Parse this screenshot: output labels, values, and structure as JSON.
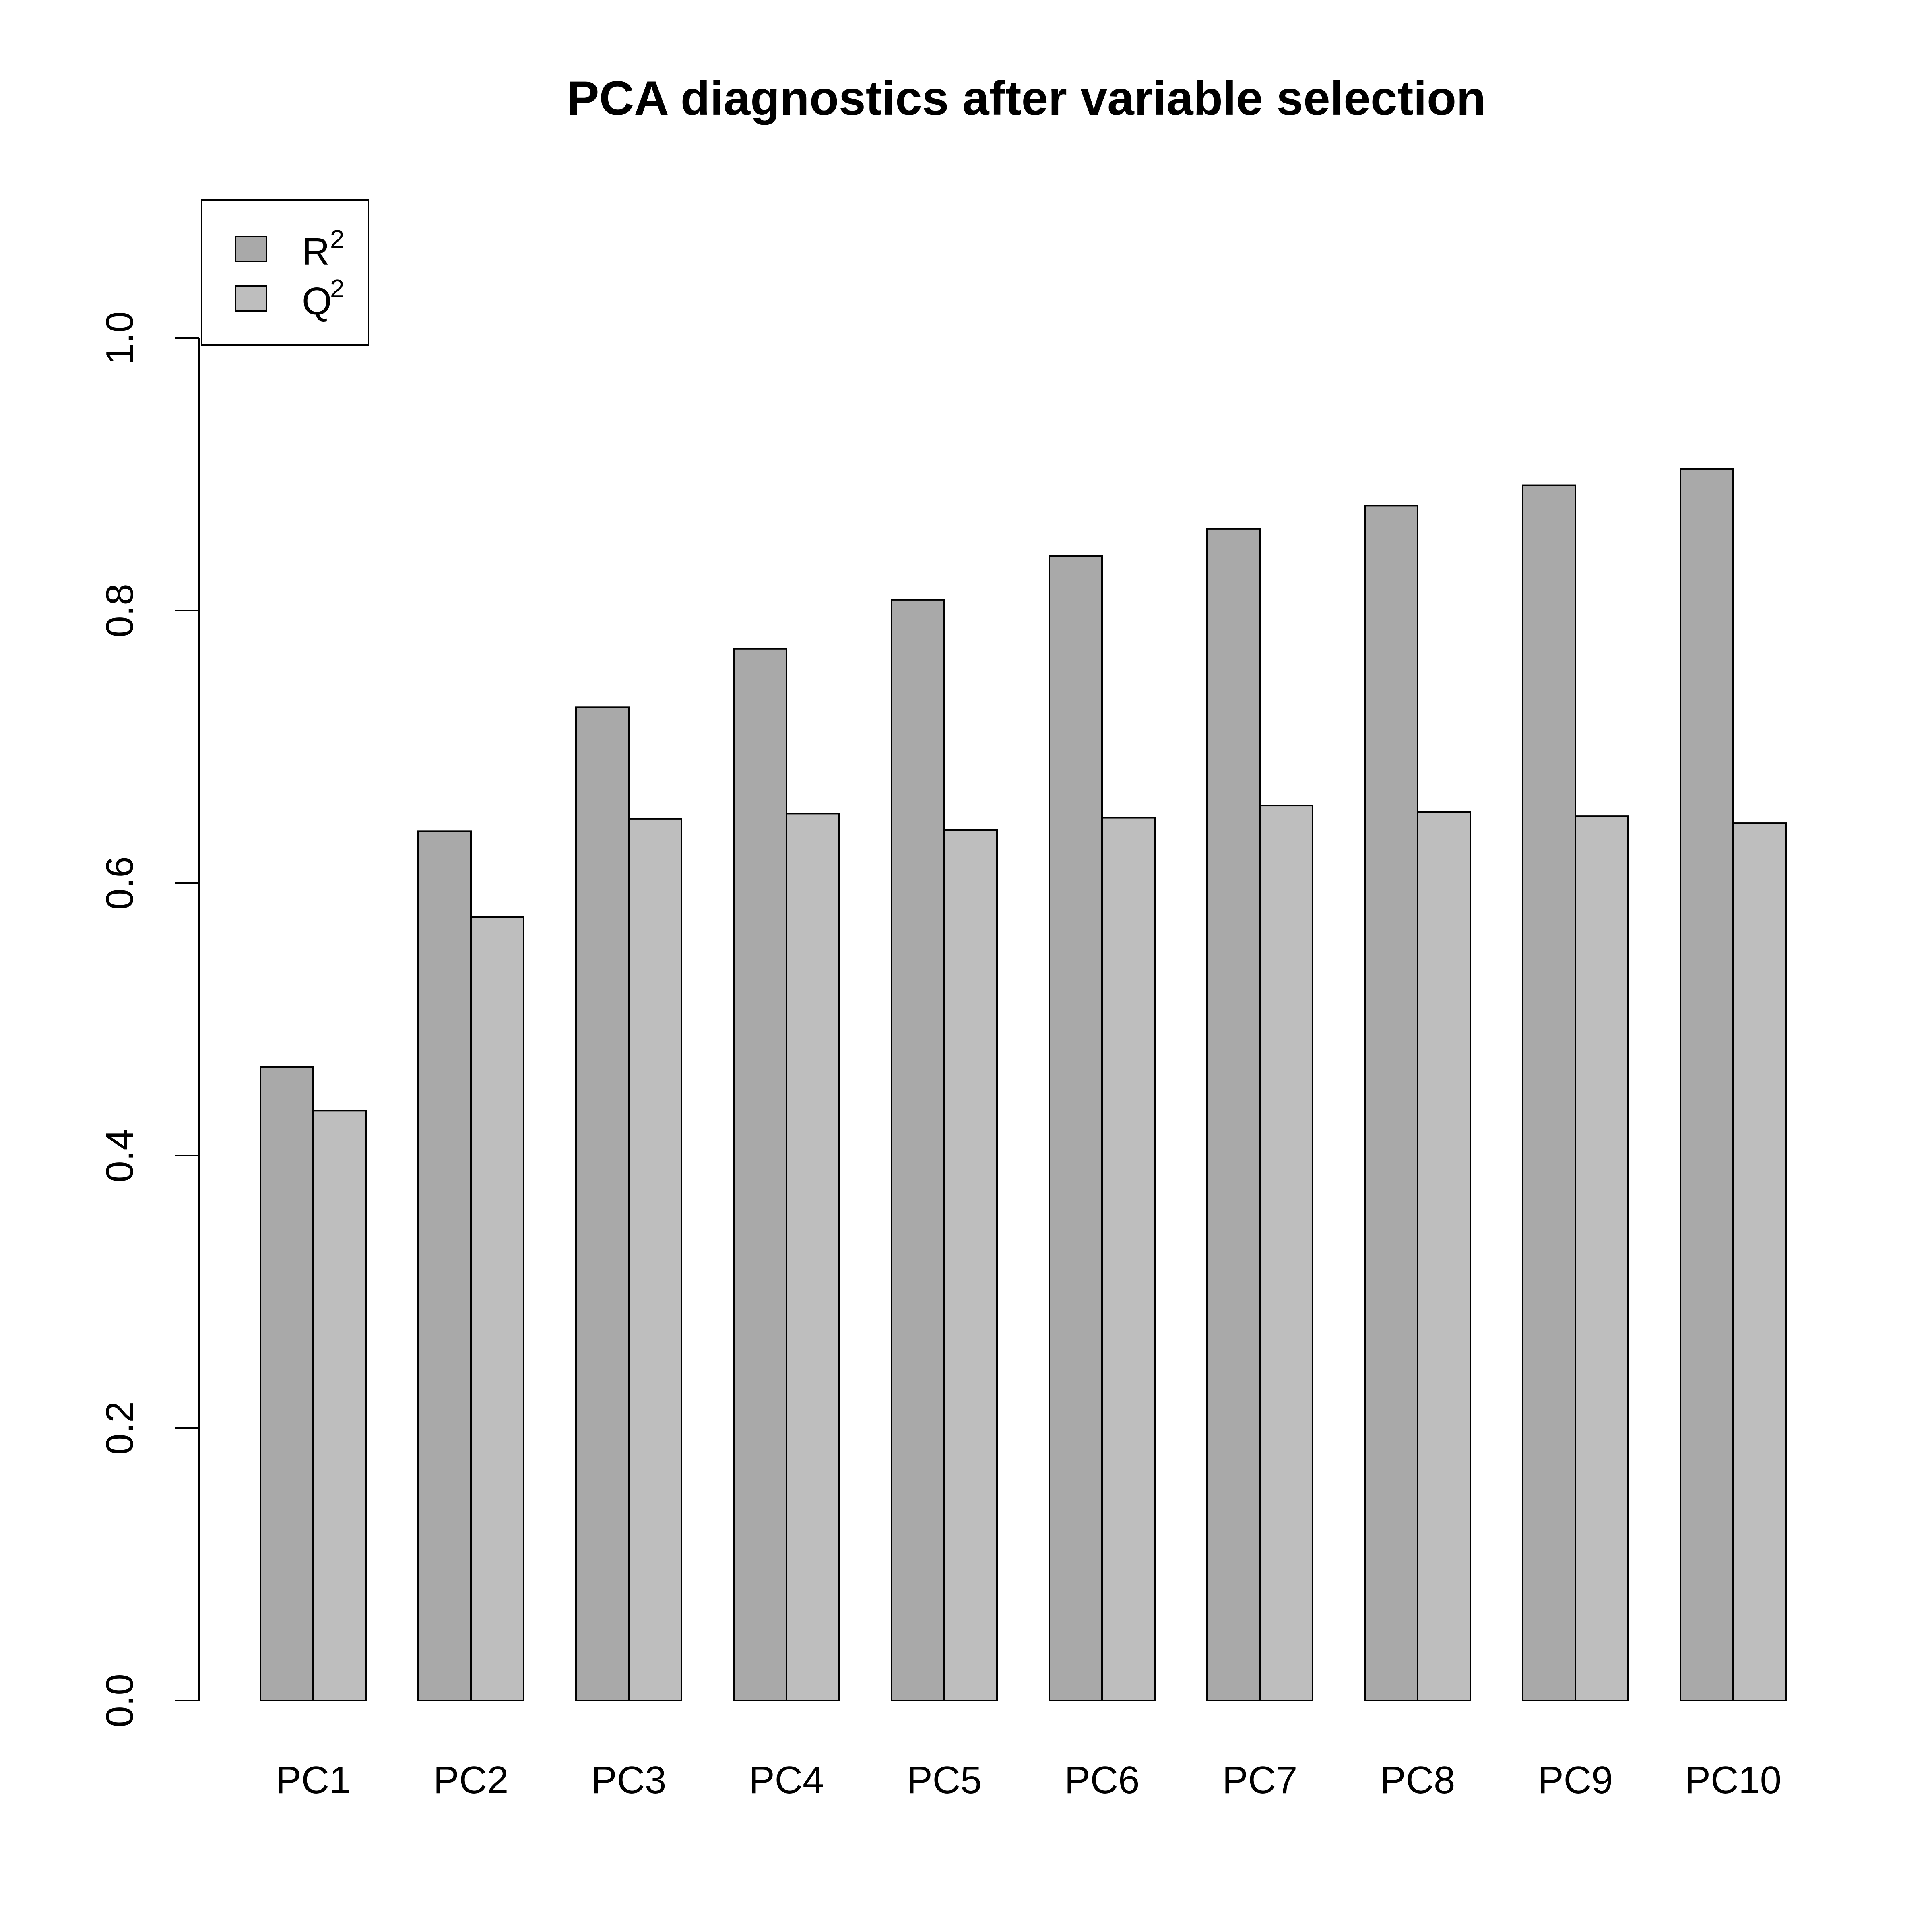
{
  "chart_data": {
    "type": "bar",
    "title": "PCA diagnostics after variable selection",
    "xlabel": "",
    "ylabel": "",
    "categories": [
      "PC1",
      "PC2",
      "PC3",
      "PC4",
      "PC5",
      "PC6",
      "PC7",
      "PC8",
      "PC9",
      "PC10"
    ],
    "series": [
      {
        "name": "R",
        "name_superscript": "2",
        "color": "#a9a9a9",
        "values": [
          0.465,
          0.638,
          0.729,
          0.772,
          0.808,
          0.84,
          0.86,
          0.877,
          0.892,
          0.904
        ]
      },
      {
        "name": "Q",
        "name_superscript": "2",
        "color": "#bebebe",
        "values": [
          0.433,
          0.575,
          0.647,
          0.651,
          0.639,
          0.648,
          0.657,
          0.652,
          0.649,
          0.644
        ]
      }
    ],
    "ylim": [
      0,
      1.1
    ],
    "yticks": [
      "0.0",
      "0.2",
      "0.4",
      "0.6",
      "0.8",
      "1.0"
    ],
    "grid": false,
    "legend_position": "top-left",
    "grouping": "grouped"
  }
}
